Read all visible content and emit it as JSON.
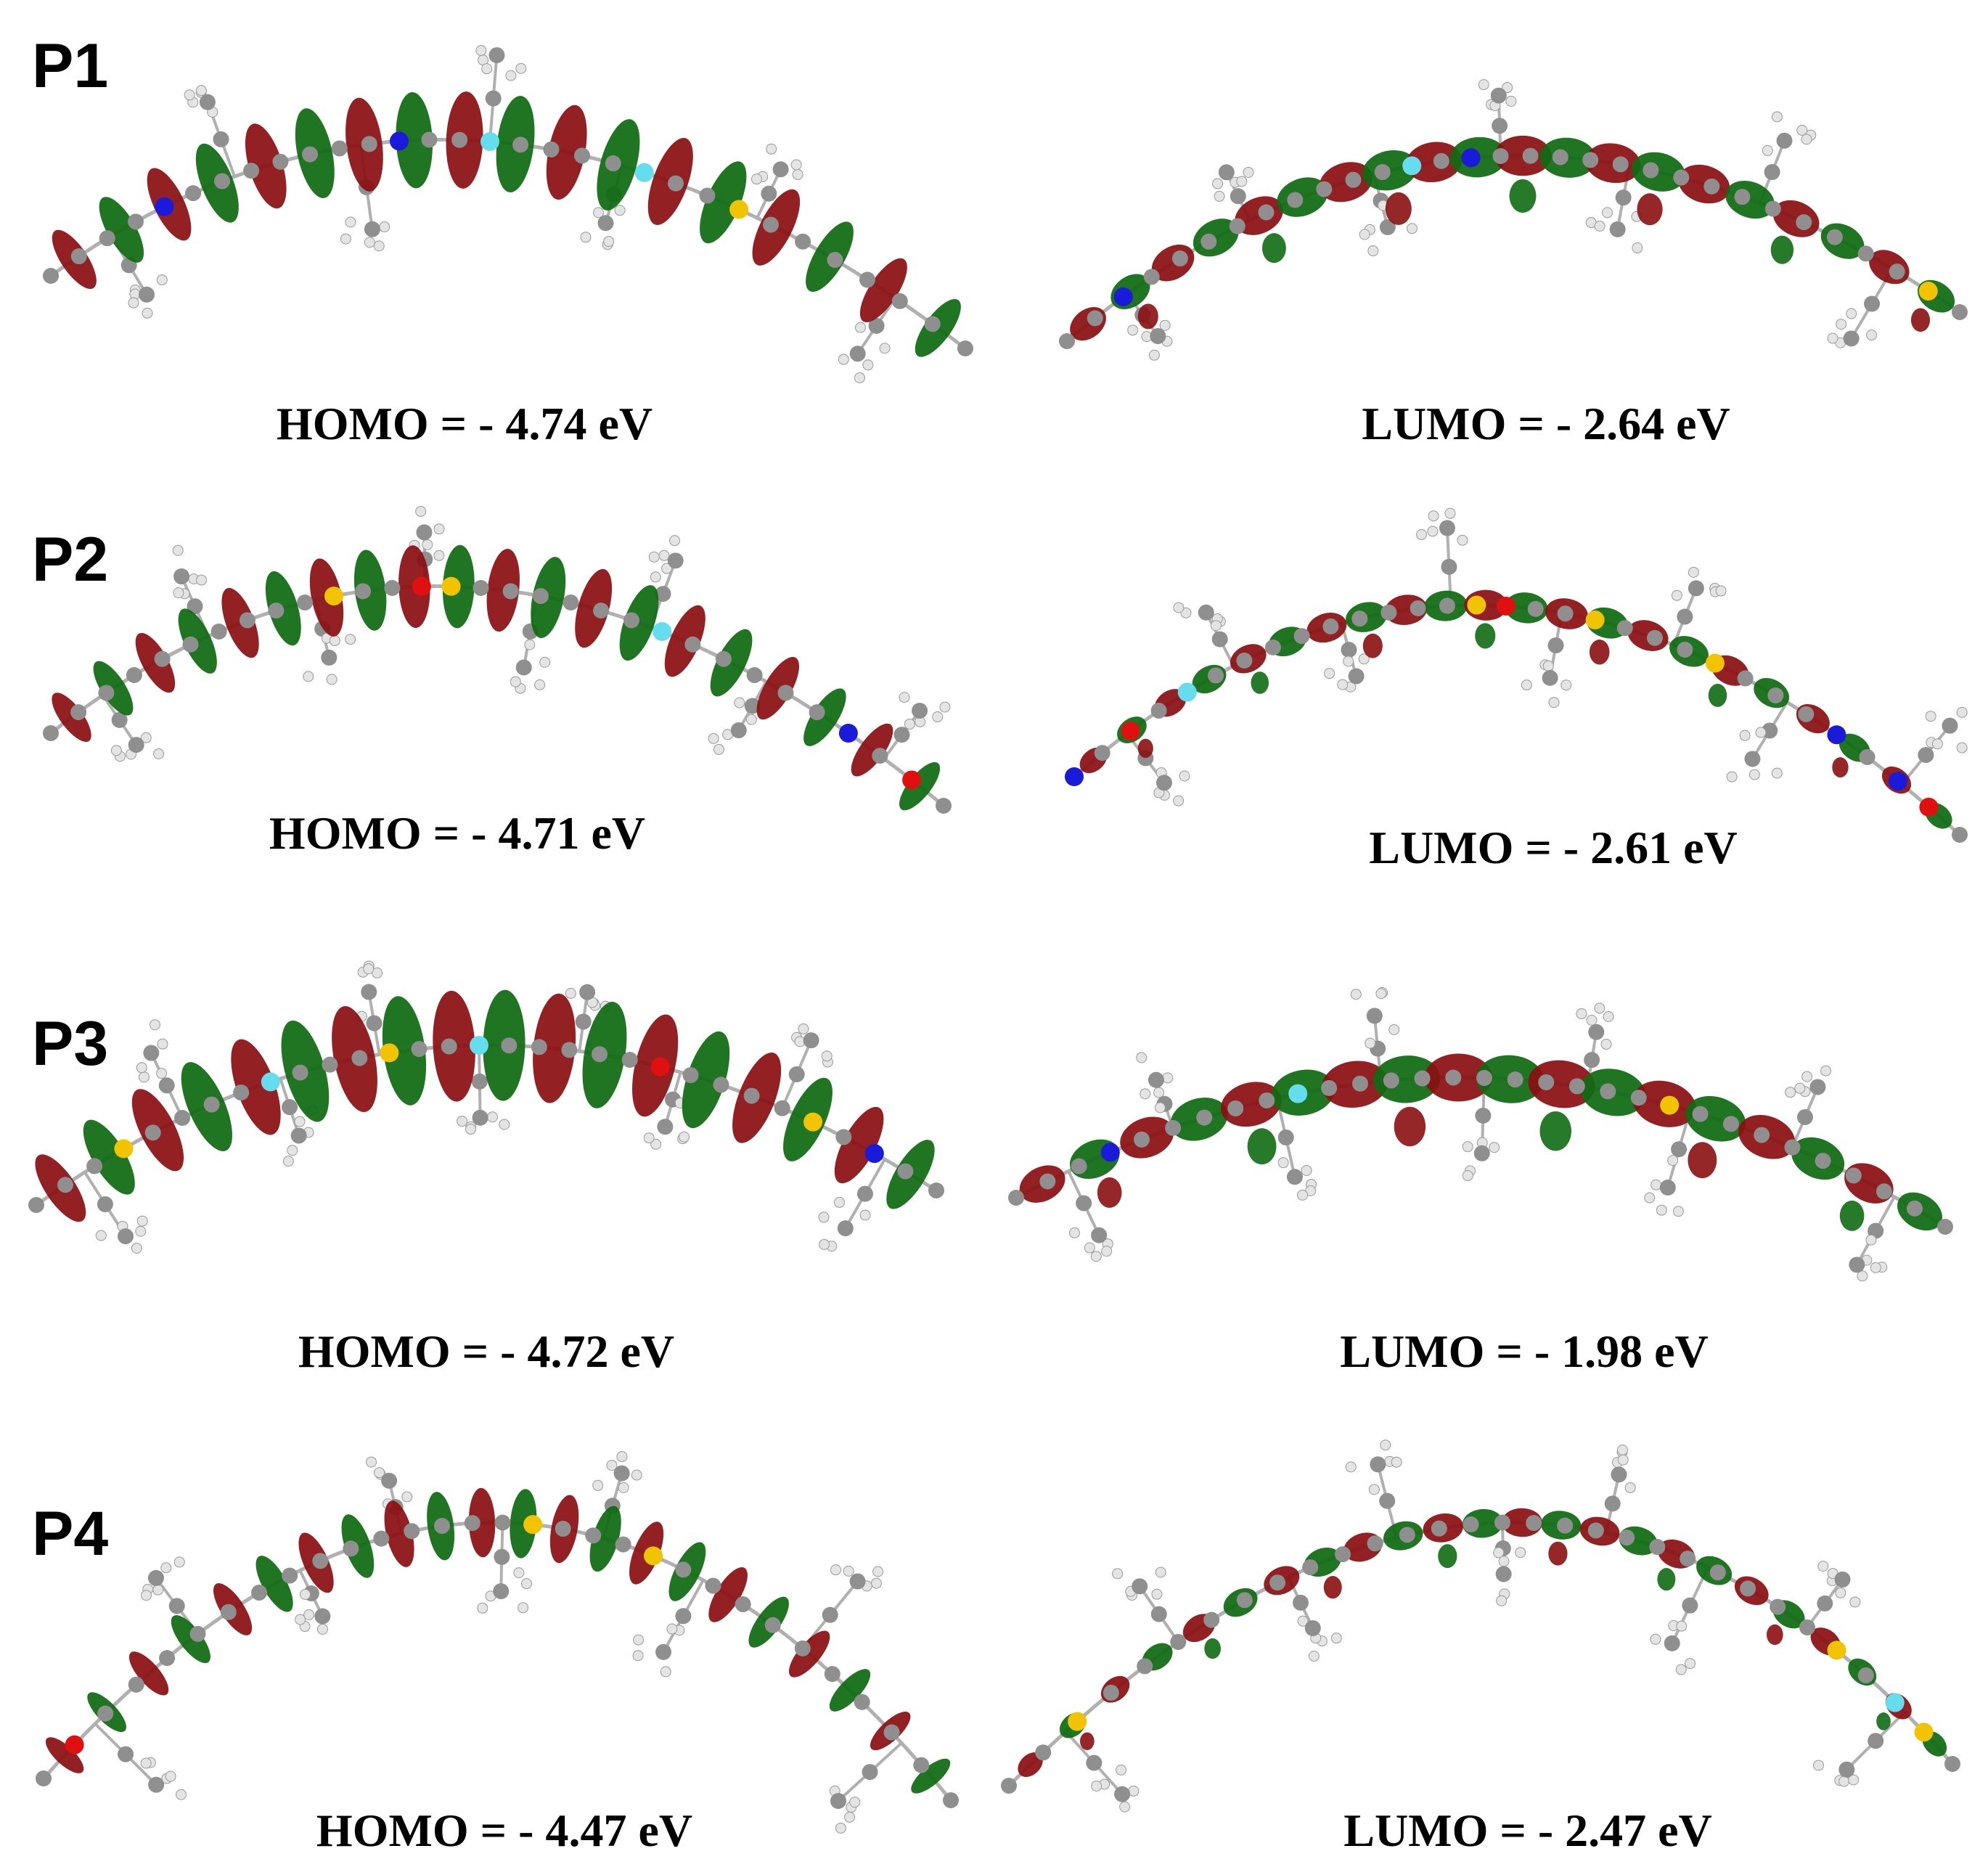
{
  "panels": [
    {
      "label": "P1",
      "homo": "HOMO = - 4.74 eV",
      "lumo": "LUMO = - 2.64 eV"
    },
    {
      "label": "P2",
      "homo": "HOMO = - 4.71 eV",
      "lumo": "LUMO = - 2.61 eV"
    },
    {
      "label": "P3",
      "homo": "HOMO = - 4.72 eV",
      "lumo": "LUMO = - 1.98 eV"
    },
    {
      "label": "P4",
      "homo": "HOMO = - 4.47 eV",
      "lumo": "LUMO = - 2.47 eV"
    }
  ],
  "colors": {
    "lobe_positive": "#8b0f12",
    "lobe_negative": "#0f6b12",
    "carbon": "#8f8f8f",
    "hydrogen": "#e4e4e4",
    "sulfur": "#f2c300",
    "nitrogen": "#1a1adb",
    "oxygen": "#e01010",
    "fluorine": "#66ddee"
  }
}
